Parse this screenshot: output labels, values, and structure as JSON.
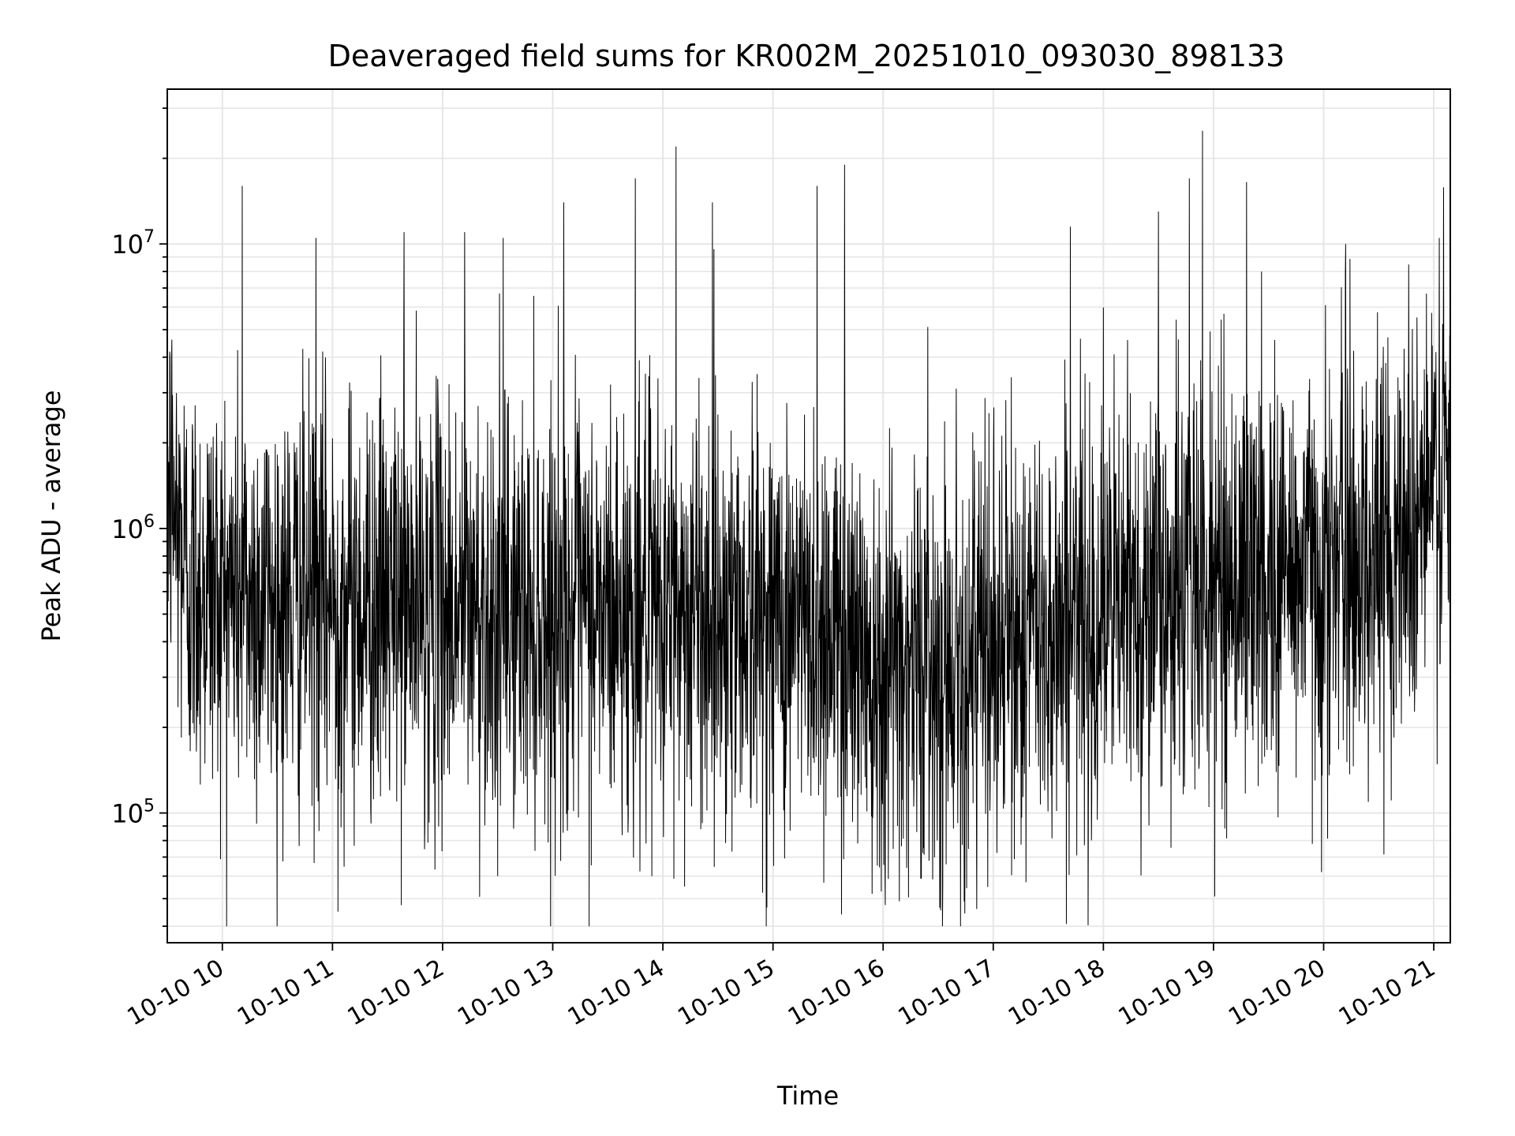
{
  "chart_data": {
    "type": "line",
    "title": "Deaveraged field sums for KR002M_20251010_093030_898133",
    "xlabel": "Time",
    "ylabel": "Peak ADU - average",
    "yscale": "log",
    "ylim": [
      35000,
      35000000
    ],
    "xlim_hours": [
      9.5,
      21.15
    ],
    "grid": true,
    "x_tick_labels": [
      "10-10 10",
      "10-10 11",
      "10-10 12",
      "10-10 13",
      "10-10 14",
      "10-10 15",
      "10-10 16",
      "10-10 17",
      "10-10 18",
      "10-10 19",
      "10-10 20",
      "10-10 21"
    ],
    "x_tick_hours": [
      10,
      11,
      12,
      13,
      14,
      15,
      16,
      17,
      18,
      19,
      20,
      21
    ],
    "y_ticks": [
      {
        "value": 100000,
        "base": "10",
        "exp": "5"
      },
      {
        "value": 1000000,
        "base": "10",
        "exp": "6"
      },
      {
        "value": 10000000,
        "base": "10",
        "exp": "7"
      }
    ],
    "series": [
      {
        "name": "Peak ADU - average",
        "color": "#000000",
        "sampling_interval_seconds": 10,
        "baseline_envelope": {
          "x_hours": [
            9.5,
            9.7,
            10.5,
            11.5,
            12.5,
            13.5,
            14.5,
            15.5,
            16.0,
            16.5,
            17.0,
            17.5,
            18.5,
            19.5,
            20.5,
            21.15
          ],
          "median_adu": [
            1500000,
            650000,
            550000,
            550000,
            520000,
            500000,
            520000,
            450000,
            360000,
            330000,
            380000,
            450000,
            600000,
            700000,
            800000,
            1600000
          ]
        },
        "notable_peaks": [
          {
            "x_hours": 10.18,
            "y": 16000000
          },
          {
            "x_hours": 10.85,
            "y": 10500000
          },
          {
            "x_hours": 11.65,
            "y": 11000000
          },
          {
            "x_hours": 12.2,
            "y": 11000000
          },
          {
            "x_hours": 12.55,
            "y": 10500000
          },
          {
            "x_hours": 13.1,
            "y": 14000000
          },
          {
            "x_hours": 13.75,
            "y": 17000000
          },
          {
            "x_hours": 14.12,
            "y": 22000000
          },
          {
            "x_hours": 14.45,
            "y": 14000000
          },
          {
            "x_hours": 15.4,
            "y": 16000000
          },
          {
            "x_hours": 15.65,
            "y": 19000000
          },
          {
            "x_hours": 17.7,
            "y": 11500000
          },
          {
            "x_hours": 18.5,
            "y": 13000000
          },
          {
            "x_hours": 18.78,
            "y": 17000000
          },
          {
            "x_hours": 18.9,
            "y": 25000000
          },
          {
            "x_hours": 19.3,
            "y": 16500000
          },
          {
            "x_hours": 20.2,
            "y": 10000000
          },
          {
            "x_hours": 21.05,
            "y": 10500000
          }
        ],
        "notable_troughs": [
          {
            "x_hours": 11.05,
            "y": 45000
          },
          {
            "x_hours": 12.5,
            "y": 60000
          },
          {
            "x_hours": 13.9,
            "y": 60000
          },
          {
            "x_hours": 15.9,
            "y": 52000
          },
          {
            "x_hours": 16.85,
            "y": 46000
          },
          {
            "x_hours": 16.95,
            "y": 55000
          },
          {
            "x_hours": 19.98,
            "y": 62000
          }
        ]
      }
    ]
  }
}
